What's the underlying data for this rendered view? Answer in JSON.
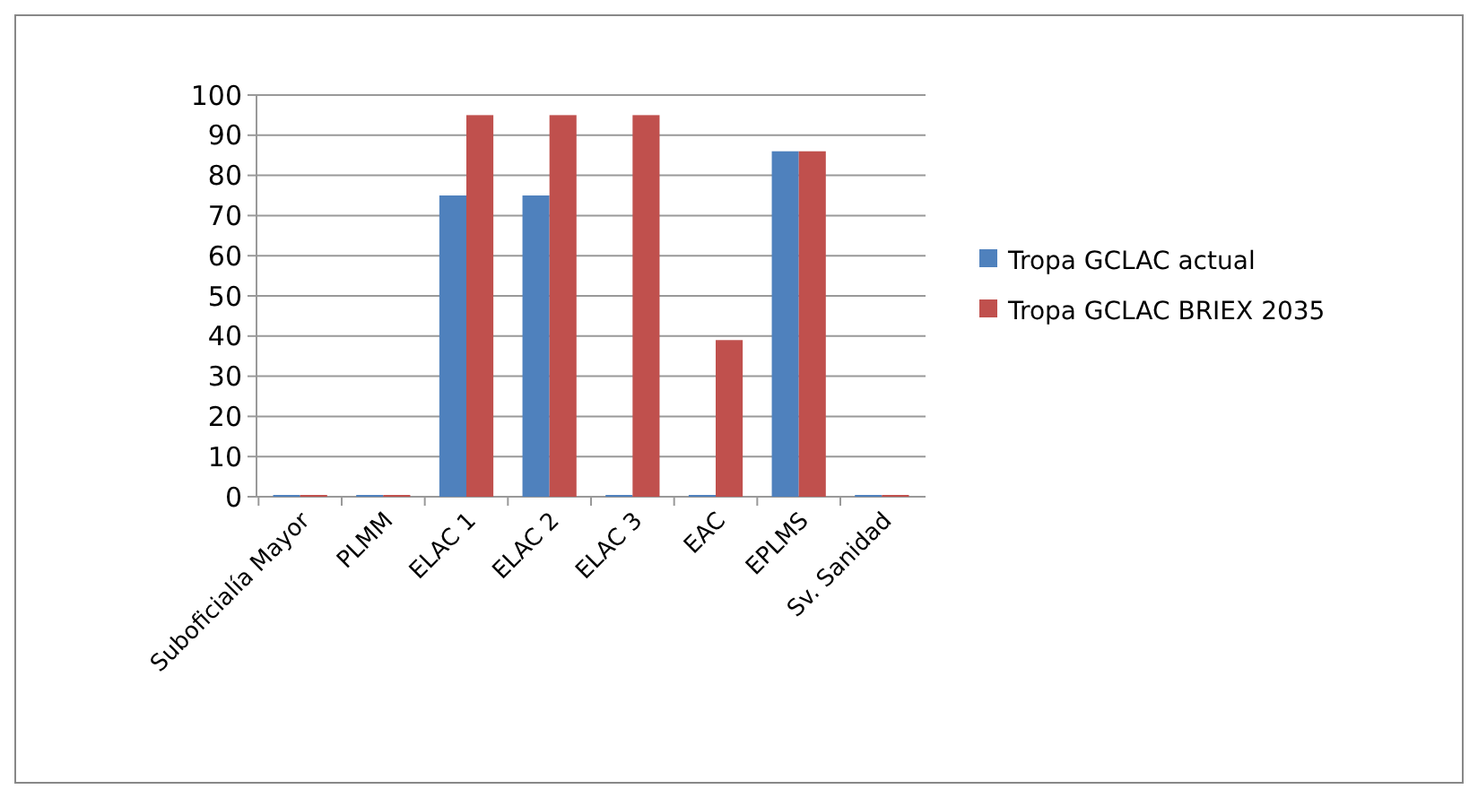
{
  "chart_data": {
    "type": "bar",
    "categories": [
      "Suboficialía Mayor",
      "PLMM",
      "ELAC 1",
      "ELAC 2",
      "ELAC 3",
      "EAC",
      "EPLMS",
      "Sv. Sanidad"
    ],
    "series": [
      {
        "name": "Tropa GCLAC actual",
        "color": "#4f81bd",
        "values": [
          0,
          0,
          75,
          75,
          0,
          0,
          86,
          0
        ]
      },
      {
        "name": "Tropa GCLAC BRIEX 2035",
        "color": "#c0504d",
        "values": [
          0,
          0,
          95,
          95,
          95,
          39,
          86,
          0
        ]
      }
    ],
    "ylim": [
      0,
      100
    ],
    "yticks": [
      0,
      10,
      20,
      30,
      40,
      50,
      60,
      70,
      80,
      90,
      100
    ],
    "grid": "y",
    "legend": "right"
  }
}
